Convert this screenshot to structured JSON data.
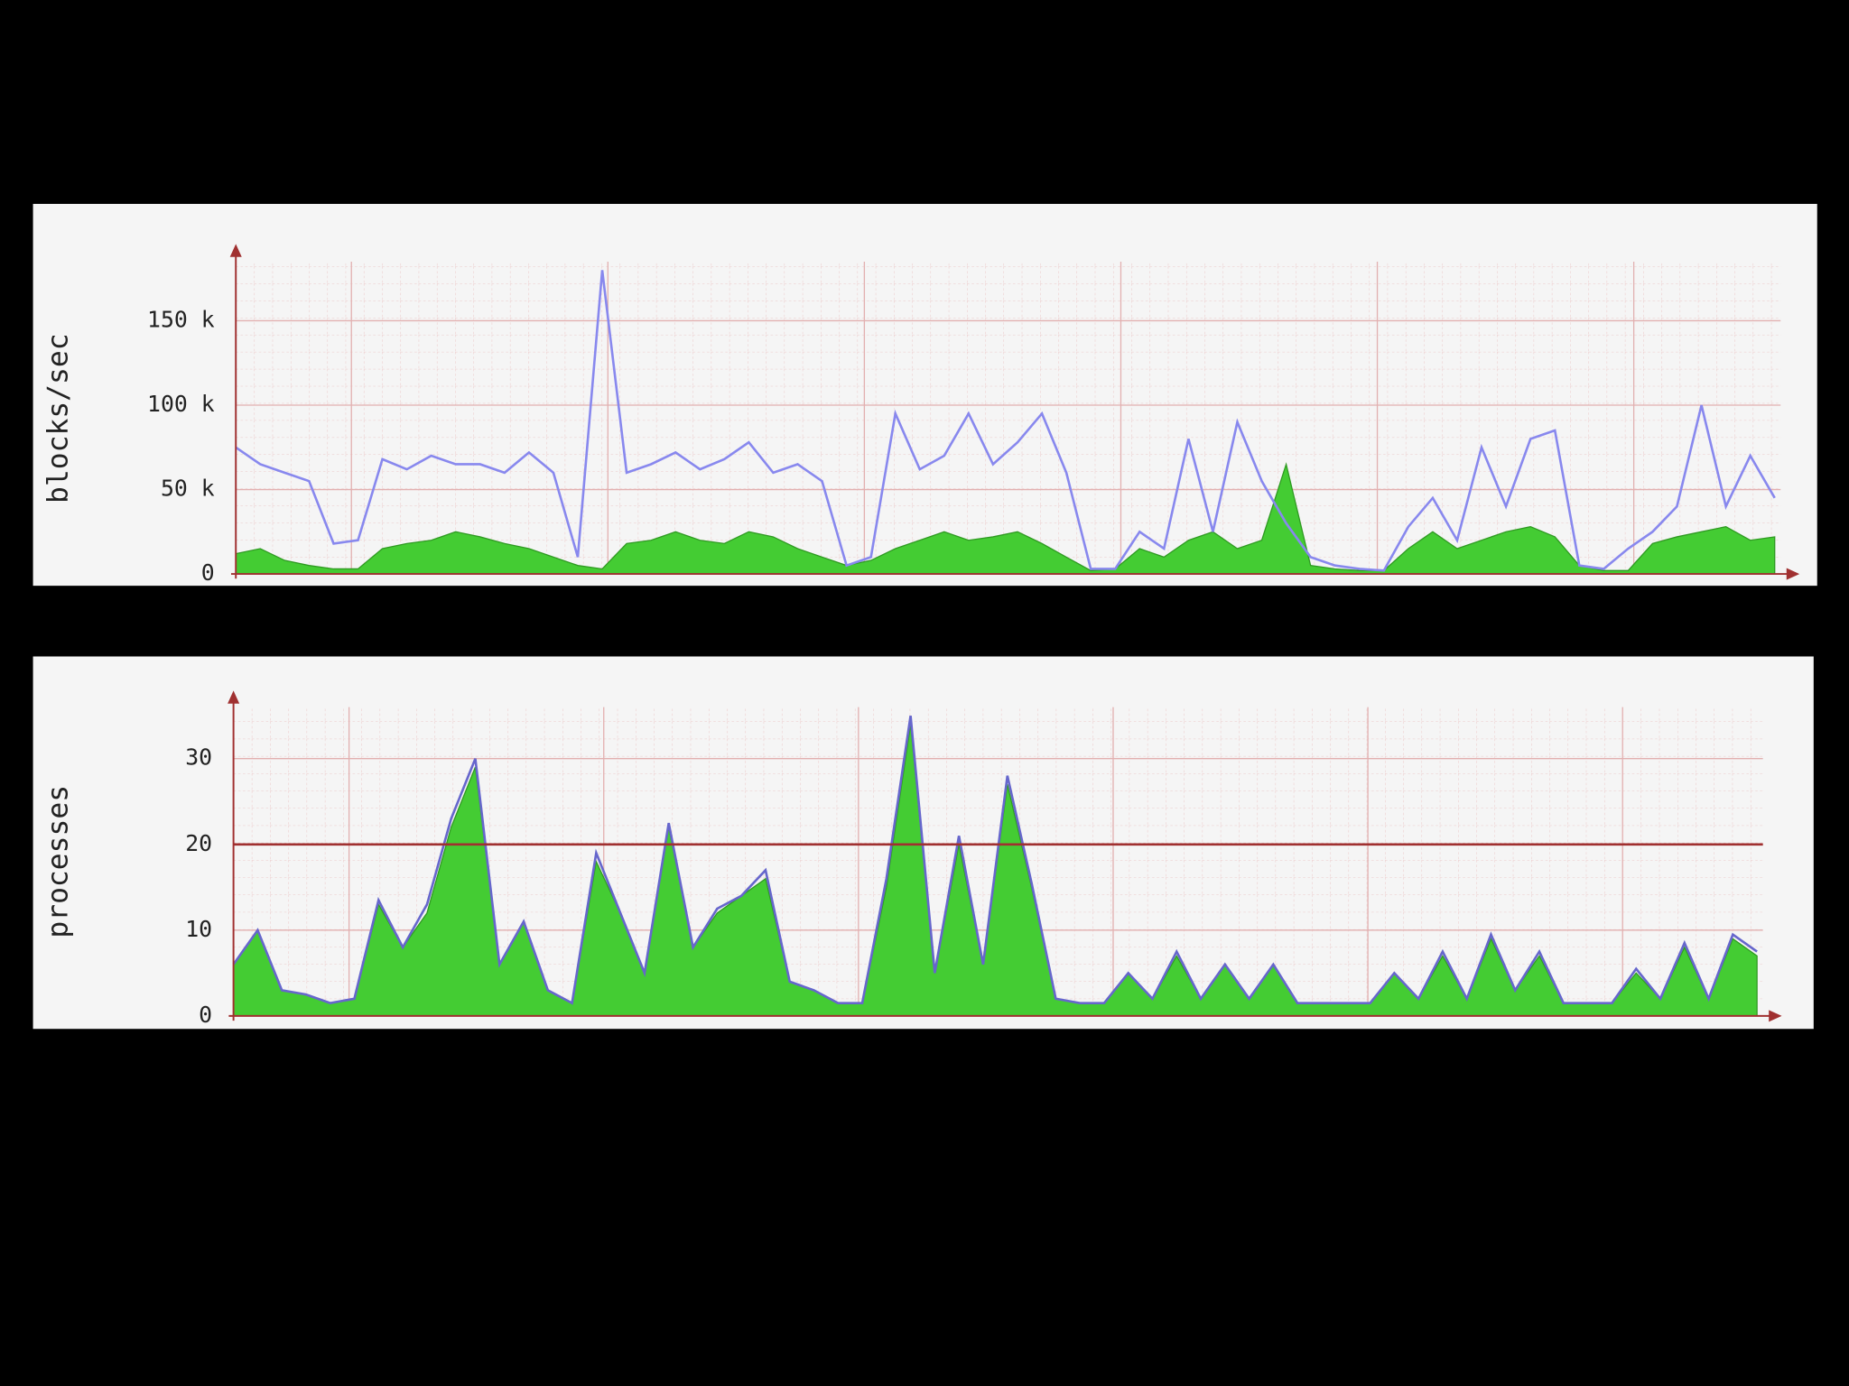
{
  "chart_data": [
    {
      "type": "line",
      "y_label": "blocks/sec",
      "ylim": [
        0,
        185000
      ],
      "yticks": [
        0,
        {
          "value": 50000,
          "label": "50 k"
        },
        {
          "value": 100000,
          "label": "100 k"
        },
        {
          "value": 150000,
          "label": "150 k"
        }
      ],
      "grid": true,
      "series": [
        {
          "style": "area",
          "color": "#44cc33",
          "values": [
            12000,
            15000,
            8000,
            5000,
            3000,
            3000,
            15000,
            18000,
            20000,
            25000,
            22000,
            18000,
            15000,
            10000,
            5000,
            3000,
            18000,
            20000,
            25000,
            20000,
            18000,
            25000,
            22000,
            15000,
            10000,
            5000,
            8000,
            15000,
            20000,
            25000,
            20000,
            22000,
            25000,
            18000,
            10000,
            2000,
            3000,
            15000,
            10000,
            20000,
            25000,
            15000,
            20000,
            65000,
            5000,
            3000,
            2000,
            2000,
            15000,
            25000,
            15000,
            20000,
            25000,
            28000,
            22000,
            5000,
            2000,
            2000,
            18000,
            22000,
            25000,
            28000,
            20000,
            22000
          ]
        },
        {
          "style": "line",
          "color": "#8888ee",
          "values": [
            75000,
            65000,
            60000,
            55000,
            18000,
            20000,
            68000,
            62000,
            70000,
            65000,
            65000,
            60000,
            72000,
            60000,
            10000,
            180000,
            60000,
            65000,
            72000,
            62000,
            68000,
            78000,
            60000,
            65000,
            55000,
            5000,
            10000,
            95000,
            62000,
            70000,
            95000,
            65000,
            78000,
            95000,
            60000,
            3000,
            3000,
            25000,
            15000,
            80000,
            25000,
            90000,
            55000,
            30000,
            10000,
            5000,
            3000,
            2000,
            28000,
            45000,
            20000,
            75000,
            40000,
            80000,
            85000,
            5000,
            3000,
            15000,
            25000,
            40000,
            100000,
            40000,
            70000,
            45000
          ]
        }
      ]
    },
    {
      "type": "line",
      "y_label": "processes",
      "ylim": [
        0,
        36
      ],
      "yticks": [
        0,
        10,
        20,
        30
      ],
      "grid": true,
      "hlines": [
        {
          "value": 20,
          "color": "#a03030"
        }
      ],
      "series": [
        {
          "style": "area",
          "color": "#44cc33",
          "values": [
            6,
            10,
            3,
            2.5,
            1.5,
            2,
            13,
            8,
            12,
            22,
            29,
            6,
            11,
            3,
            1.5,
            18,
            12,
            5,
            22,
            8,
            12,
            14,
            16,
            4,
            3,
            1.5,
            1.5,
            15,
            34,
            5,
            20,
            6,
            27,
            15,
            2,
            1.5,
            1.5,
            5,
            2,
            7,
            2,
            6,
            2,
            6,
            1.5,
            1.5,
            1.5,
            1.5,
            5,
            2,
            7,
            2,
            9,
            3,
            7,
            1.5,
            1.5,
            1.5,
            5,
            2,
            8,
            2,
            9,
            7
          ]
        },
        {
          "style": "line",
          "color": "#6666cc",
          "values": [
            6,
            10,
            3,
            2.5,
            1.5,
            2,
            13.5,
            8,
            13,
            23,
            30,
            6,
            11,
            3,
            1.5,
            19,
            12,
            5,
            22.5,
            8,
            12.5,
            14,
            17,
            4,
            3,
            1.5,
            1.5,
            16,
            35,
            5,
            21,
            6,
            28,
            15.5,
            2,
            1.5,
            1.5,
            5,
            2,
            7.5,
            2,
            6,
            2,
            6,
            1.5,
            1.5,
            1.5,
            1.5,
            5,
            2,
            7.5,
            2,
            9.5,
            3,
            7.5,
            1.5,
            1.5,
            1.5,
            5.5,
            2,
            8.5,
            2,
            9.5,
            7.5
          ]
        }
      ]
    }
  ]
}
